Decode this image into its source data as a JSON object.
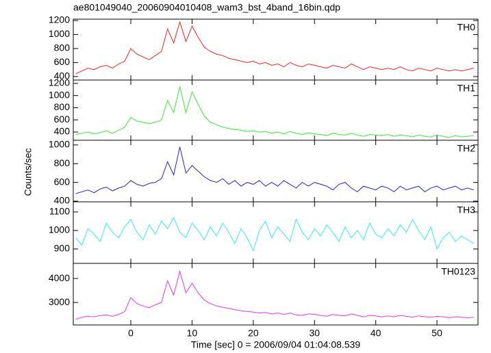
{
  "chart_data": [
    {
      "type": "line",
      "title": "ae801049040_20060904010408_wam3_bst_4band_16bin.qdp",
      "label": "TH0",
      "color": "#ff2020",
      "x": [
        -9,
        -8,
        -7,
        -6,
        -5,
        -4,
        -3,
        -2,
        -1,
        0,
        1,
        2,
        3,
        4,
        5,
        6,
        7,
        8,
        9,
        10,
        11,
        12,
        13,
        14,
        15,
        16,
        17,
        18,
        19,
        20,
        21,
        22,
        23,
        24,
        25,
        26,
        27,
        28,
        29,
        30,
        31,
        32,
        33,
        34,
        35,
        36,
        37,
        38,
        39,
        40,
        41,
        42,
        43,
        44,
        45,
        46,
        47,
        48,
        49,
        50,
        51,
        52,
        53,
        54,
        55,
        56
      ],
      "values": [
        440,
        480,
        520,
        500,
        540,
        560,
        520,
        580,
        620,
        800,
        720,
        680,
        640,
        700,
        760,
        1080,
        880,
        1180,
        900,
        1120,
        960,
        820,
        760,
        720,
        700,
        660,
        640,
        620,
        600,
        620,
        580,
        600,
        560,
        580,
        540,
        600,
        560,
        540,
        580,
        560,
        540,
        520,
        560,
        540,
        520,
        580,
        540,
        500,
        540,
        520,
        500,
        520,
        500,
        540,
        500,
        480,
        520,
        500,
        480,
        520,
        500,
        480,
        500,
        480,
        500,
        520
      ],
      "ylim": [
        350,
        1220
      ],
      "yticks": [
        400,
        600,
        800,
        1000,
        1200
      ]
    },
    {
      "type": "line",
      "label": "TH1",
      "color": "#33ee33",
      "x": [
        -9,
        -8,
        -7,
        -6,
        -5,
        -4,
        -3,
        -2,
        -1,
        0,
        1,
        2,
        3,
        4,
        5,
        6,
        7,
        8,
        9,
        10,
        11,
        12,
        13,
        14,
        15,
        16,
        17,
        18,
        19,
        20,
        21,
        22,
        23,
        24,
        25,
        26,
        27,
        28,
        29,
        30,
        31,
        32,
        33,
        34,
        35,
        36,
        37,
        38,
        39,
        40,
        41,
        42,
        43,
        44,
        45,
        46,
        47,
        48,
        49,
        50,
        51,
        52,
        53,
        54,
        55,
        56
      ],
      "values": [
        360,
        380,
        400,
        370,
        390,
        420,
        380,
        430,
        480,
        640,
        580,
        560,
        540,
        560,
        600,
        920,
        720,
        1150,
        720,
        1060,
        860,
        660,
        560,
        520,
        480,
        460,
        440,
        430,
        410,
        420,
        400,
        410,
        380,
        400,
        370,
        410,
        380,
        360,
        390,
        370,
        360,
        340,
        380,
        360,
        350,
        380,
        350,
        330,
        360,
        350,
        340,
        360,
        330,
        350,
        340,
        320,
        350,
        330,
        320,
        350,
        330,
        310,
        340,
        320,
        330,
        340
      ],
      "ylim": [
        265,
        1255
      ],
      "yticks": [
        400,
        600,
        800,
        1000,
        1200
      ]
    },
    {
      "type": "line",
      "label": "TH2",
      "color": "#2222dd",
      "y_label": "Counts/sec",
      "x": [
        -9,
        -8,
        -7,
        -6,
        -5,
        -4,
        -3,
        -2,
        -1,
        0,
        1,
        2,
        3,
        4,
        5,
        6,
        7,
        8,
        9,
        10,
        11,
        12,
        13,
        14,
        15,
        16,
        17,
        18,
        19,
        20,
        21,
        22,
        23,
        24,
        25,
        26,
        27,
        28,
        29,
        30,
        31,
        32,
        33,
        34,
        35,
        36,
        37,
        38,
        39,
        40,
        41,
        42,
        43,
        44,
        45,
        46,
        47,
        48,
        49,
        50,
        51,
        52,
        53,
        54,
        55,
        56
      ],
      "values": [
        480,
        500,
        520,
        490,
        530,
        550,
        510,
        540,
        560,
        620,
        580,
        560,
        590,
        600,
        640,
        820,
        680,
        980,
        700,
        780,
        720,
        660,
        620,
        600,
        640,
        580,
        620,
        560,
        600,
        580,
        620,
        560,
        600,
        560,
        620,
        580,
        540,
        600,
        560,
        600,
        580,
        560,
        520,
        580,
        600,
        540,
        500,
        560,
        540,
        520,
        560,
        540,
        500,
        560,
        520,
        540,
        560,
        500,
        540,
        560,
        520,
        540,
        560,
        520,
        540,
        520
      ],
      "ylim": [
        393,
        1050
      ],
      "yticks": [
        400,
        600,
        800,
        1000
      ]
    },
    {
      "type": "line",
      "label": "TH3",
      "color": "#33eeee",
      "x": [
        -9,
        -8,
        -7,
        -6,
        -5,
        -4,
        -3,
        -2,
        -1,
        0,
        1,
        2,
        3,
        4,
        5,
        6,
        7,
        8,
        9,
        10,
        11,
        12,
        13,
        14,
        15,
        16,
        17,
        18,
        19,
        20,
        21,
        22,
        23,
        24,
        25,
        26,
        27,
        28,
        29,
        30,
        31,
        32,
        33,
        34,
        35,
        36,
        37,
        38,
        39,
        40,
        41,
        42,
        43,
        44,
        45,
        46,
        47,
        48,
        49,
        50,
        51,
        52,
        53,
        54,
        55,
        56
      ],
      "values": [
        960,
        920,
        1010,
        980,
        940,
        1040,
        990,
        960,
        1020,
        1060,
        990,
        950,
        1030,
        980,
        1050,
        1010,
        1070,
        990,
        960,
        1040,
        1000,
        950,
        1020,
        970,
        1040,
        990,
        930,
        1010,
        960,
        890,
        1000,
        1050,
        960,
        1020,
        980,
        940,
        1060,
        990,
        950,
        1010,
        970,
        1030,
        990,
        940,
        1020,
        960,
        1000,
        950,
        1040,
        980,
        960,
        1010,
        970,
        1030,
        990,
        1060,
        1000,
        950,
        1020,
        900,
        960,
        990,
        940,
        970,
        950,
        930
      ],
      "ylim": [
        822,
        1155
      ],
      "yticks": [
        900,
        1000,
        1100
      ]
    },
    {
      "type": "line",
      "label": "TH0123",
      "color": "#ee33ee",
      "x_label": "Time [sec] 0 = 2006/09/04 01:04:08.539",
      "x": [
        -9,
        -8,
        -7,
        -6,
        -5,
        -4,
        -3,
        -2,
        -1,
        0,
        1,
        2,
        3,
        4,
        5,
        6,
        7,
        8,
        9,
        10,
        11,
        12,
        13,
        14,
        15,
        16,
        17,
        18,
        19,
        20,
        21,
        22,
        23,
        24,
        25,
        26,
        27,
        28,
        29,
        30,
        31,
        32,
        33,
        34,
        35,
        36,
        37,
        38,
        39,
        40,
        41,
        42,
        43,
        44,
        45,
        46,
        47,
        48,
        49,
        50,
        51,
        52,
        53,
        54,
        55,
        56
      ],
      "values": [
        2300,
        2380,
        2420,
        2400,
        2450,
        2480,
        2420,
        2500,
        2620,
        3200,
        2950,
        2850,
        2780,
        2900,
        3000,
        3900,
        3300,
        4300,
        3400,
        3800,
        3400,
        3100,
        2950,
        2850,
        2800,
        2750,
        2700,
        2650,
        2620,
        2600,
        2560,
        2580,
        2520,
        2560,
        2500,
        2560,
        2480,
        2460,
        2520,
        2500,
        2460,
        2420,
        2500,
        2460,
        2440,
        2520,
        2460,
        2400,
        2460,
        2440,
        2400,
        2440,
        2400,
        2460,
        2420,
        2380,
        2440,
        2400,
        2380,
        2420,
        2400,
        2360,
        2400,
        2380,
        2360,
        2380
      ],
      "ylim": [
        2060,
        4630
      ],
      "yticks": [
        3000,
        4000
      ],
      "xlim": [
        -9.4,
        56.7
      ],
      "xticks": [
        0,
        10,
        20,
        30,
        40,
        50
      ]
    }
  ]
}
